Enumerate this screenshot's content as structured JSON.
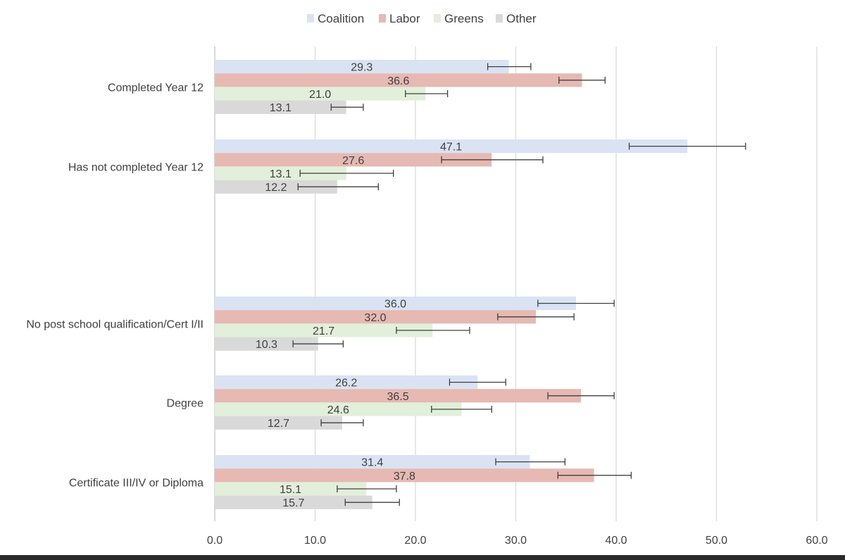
{
  "chart_data": {
    "type": "bar",
    "orientation": "horizontal",
    "legend_position": "top",
    "grid": true,
    "xlim": [
      0,
      60
    ],
    "x_ticks": [
      "0.0",
      "10.0",
      "20.0",
      "30.0",
      "40.0",
      "50.0",
      "60.0"
    ],
    "groups": [
      {
        "category": "Completed Year 12",
        "values": [
          29.3,
          36.6,
          21.0,
          13.1
        ],
        "err_low": [
          27.2,
          34.3,
          19.0,
          11.6
        ],
        "err_high": [
          31.5,
          38.9,
          23.2,
          14.8
        ]
      },
      {
        "category": "Has not completed Year 12",
        "values": [
          47.1,
          27.6,
          13.1,
          12.2
        ],
        "err_low": [
          41.3,
          22.6,
          8.5,
          8.3
        ],
        "err_high": [
          52.9,
          32.7,
          17.8,
          16.3
        ]
      },
      {
        "category": "",
        "values": [],
        "err_low": [],
        "err_high": []
      },
      {
        "category": "No post school qualification/Cert I/II",
        "values": [
          36.0,
          32.0,
          21.7,
          10.3
        ],
        "err_low": [
          32.2,
          28.2,
          18.1,
          7.8
        ],
        "err_high": [
          39.8,
          35.8,
          25.4,
          12.8
        ]
      },
      {
        "category": "Degree",
        "values": [
          26.2,
          36.5,
          24.6,
          12.7
        ],
        "err_low": [
          23.4,
          33.2,
          21.6,
          10.6
        ],
        "err_high": [
          29.0,
          39.8,
          27.6,
          14.8
        ]
      },
      {
        "category": "Certificate III/IV or Diploma",
        "values": [
          31.4,
          37.8,
          15.1,
          15.7
        ],
        "err_low": [
          28.0,
          34.2,
          12.2,
          13.0
        ],
        "err_high": [
          34.9,
          41.5,
          18.1,
          18.4
        ]
      }
    ],
    "series": [
      {
        "name": "Coalition",
        "color": "#dae3f3"
      },
      {
        "name": "Labor",
        "color": "#e6b9b3"
      },
      {
        "name": "Greens",
        "color": "#e2efda"
      },
      {
        "name": "Other",
        "color": "#d9d9d9"
      }
    ]
  }
}
